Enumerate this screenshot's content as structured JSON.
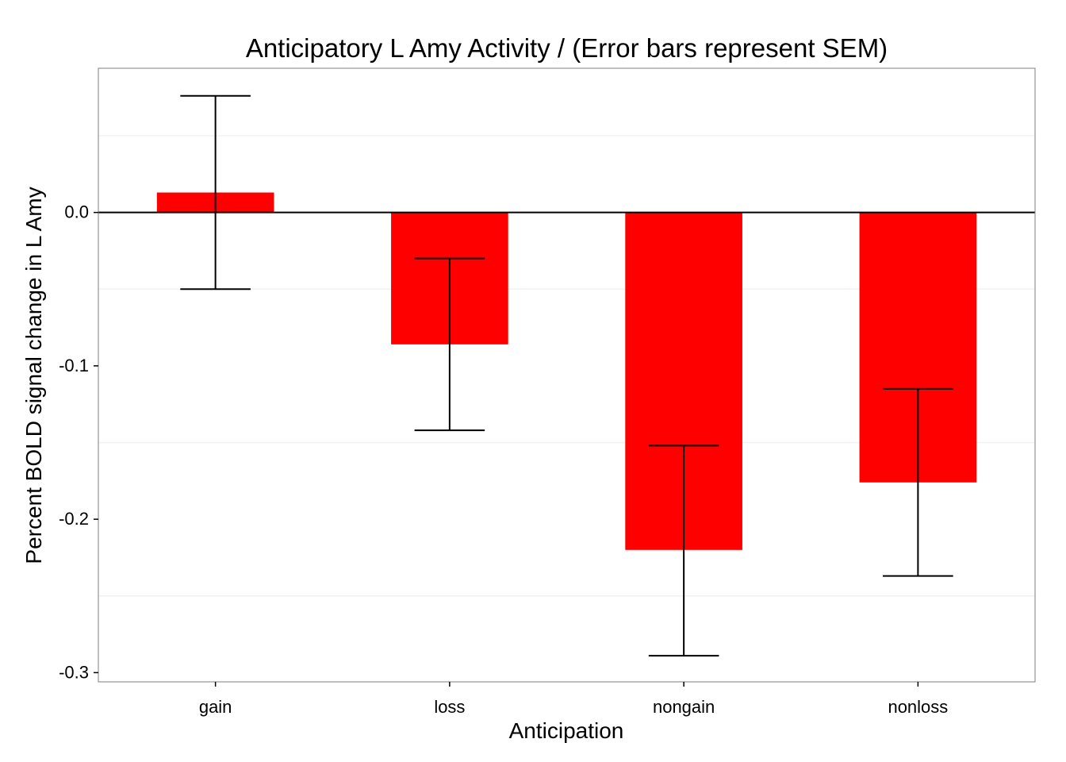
{
  "chart_data": {
    "type": "bar",
    "title": "Anticipatory L Amy Activity / (Error bars represent SEM)",
    "xlabel": "Anticipation",
    "ylabel": "Percent BOLD signal change in L Amy",
    "categories": [
      "gain",
      "loss",
      "nongain",
      "nonloss"
    ],
    "values": [
      0.013,
      -0.086,
      -0.22,
      -0.176
    ],
    "error_low": [
      -0.05,
      -0.142,
      -0.289,
      -0.237
    ],
    "error_high": [
      0.076,
      -0.03,
      -0.152,
      -0.115
    ],
    "ylim": [
      -0.306,
      0.094
    ],
    "yticks": [
      0.0,
      -0.1,
      -0.2,
      -0.3
    ],
    "ytick_labels": [
      "0.0",
      "-0.1",
      "-0.2",
      "-0.3"
    ],
    "bar_color": "#ff0000",
    "reference_line_y": 0,
    "grid": true,
    "legend": "none"
  }
}
